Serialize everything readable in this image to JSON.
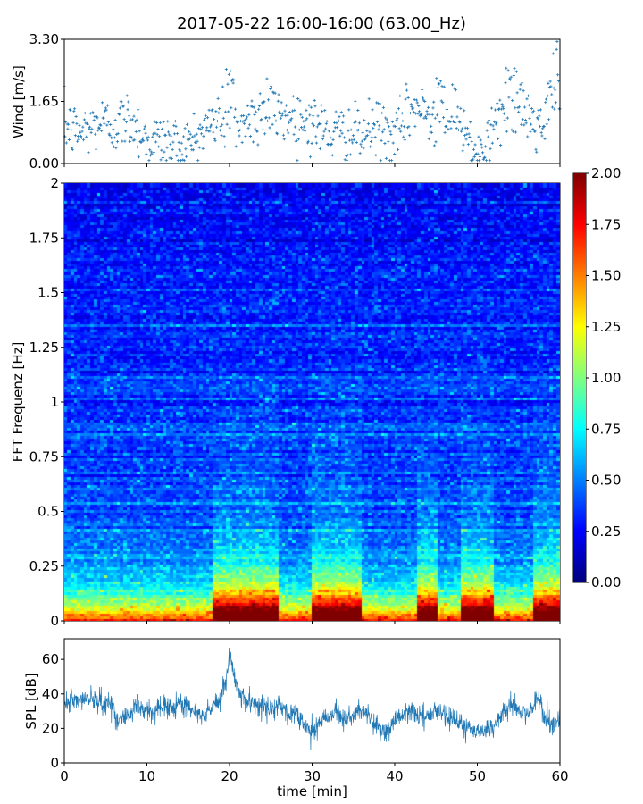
{
  "figure": {
    "title": "2017-05-22 16:00-16:00 (63.00_Hz)",
    "xlabel": "time [min]"
  },
  "chart_data": [
    {
      "type": "scatter",
      "name": "wind",
      "ylabel": "Wind [m/s]",
      "xlim": [
        0,
        60
      ],
      "ylim": [
        0,
        3.3
      ],
      "yticks": [
        "0.00",
        "1.65",
        "3.30"
      ],
      "yticks_values": [
        0,
        1.65,
        3.3
      ],
      "marker_color": "#1f77b4",
      "marker": "+",
      "trend": [
        [
          0,
          1.0
        ],
        [
          2,
          0.8
        ],
        [
          4,
          1.1
        ],
        [
          6,
          1.0
        ],
        [
          8,
          1.2
        ],
        [
          10,
          0.6
        ],
        [
          12,
          0.6
        ],
        [
          14,
          0.5
        ],
        [
          15,
          0.5
        ],
        [
          17,
          0.9
        ],
        [
          18,
          1.1
        ],
        [
          19,
          1.2
        ],
        [
          20,
          1.0
        ],
        [
          22,
          1.1
        ],
        [
          24,
          1.4
        ],
        [
          26,
          1.3
        ],
        [
          28,
          1.2
        ],
        [
          30,
          1.1
        ],
        [
          32,
          0.8
        ],
        [
          34,
          0.8
        ],
        [
          36,
          0.7
        ],
        [
          38,
          1.0
        ],
        [
          40,
          0.6
        ],
        [
          42,
          1.5
        ],
        [
          44,
          1.3
        ],
        [
          46,
          1.2
        ],
        [
          48,
          1.0
        ],
        [
          50,
          0.4
        ],
        [
          51,
          0.5
        ],
        [
          53,
          1.2
        ],
        [
          55,
          1.6
        ],
        [
          57,
          1.0
        ],
        [
          58,
          0.9
        ],
        [
          59,
          1.8
        ],
        [
          60,
          1.6
        ]
      ],
      "peaks": [
        [
          20,
          2.6
        ],
        [
          25,
          2.3
        ],
        [
          45.5,
          2.4
        ],
        [
          54,
          2.6
        ],
        [
          59.5,
          3.3
        ]
      ]
    },
    {
      "type": "heatmap",
      "name": "spectrogram",
      "ylabel": "FFT Frequenz [Hz]",
      "xlim": [
        0,
        60
      ],
      "ylim": [
        0,
        2
      ],
      "yticks": [
        "0",
        "0.25",
        "0.5",
        "0.75",
        "1",
        "1.25",
        "1.5",
        "1.75",
        "2"
      ],
      "yticks_values": [
        0,
        0.25,
        0.5,
        0.75,
        1,
        1.25,
        1.5,
        1.75,
        2
      ],
      "colormap": "jet",
      "value_range": [
        0,
        2
      ],
      "n_time_bins": 150,
      "n_freq_bins": 160,
      "high_energy_intervals_min": [
        [
          18,
          26
        ],
        [
          30,
          36
        ],
        [
          43,
          45
        ],
        [
          48,
          52
        ],
        [
          57,
          60
        ]
      ],
      "colorbar": {
        "ticks": [
          "0.00",
          "0.25",
          "0.50",
          "0.75",
          "1.00",
          "1.25",
          "1.50",
          "1.75",
          "2.00"
        ],
        "ticks_values": [
          0,
          0.25,
          0.5,
          0.75,
          1,
          1.25,
          1.5,
          1.75,
          2
        ]
      }
    },
    {
      "type": "line",
      "name": "spl",
      "ylabel": "SPL [dB]",
      "xlabel": "time [min]",
      "xlim": [
        0,
        60
      ],
      "ylim": [
        0,
        72
      ],
      "xticks": [
        "0",
        "10",
        "20",
        "30",
        "40",
        "50",
        "60"
      ],
      "xticks_values": [
        0,
        10,
        20,
        30,
        40,
        50,
        60
      ],
      "yticks": [
        "0",
        "20",
        "40",
        "60"
      ],
      "yticks_values": [
        0,
        20,
        40,
        60
      ],
      "line_color": "#1f77b4",
      "trend": [
        [
          0,
          36
        ],
        [
          3,
          37
        ],
        [
          6,
          33
        ],
        [
          6.2,
          24
        ],
        [
          8,
          27
        ],
        [
          9,
          34
        ],
        [
          10,
          30
        ],
        [
          12,
          32
        ],
        [
          14,
          34
        ],
        [
          16,
          30
        ],
        [
          17,
          28
        ],
        [
          18,
          32
        ],
        [
          19,
          38
        ],
        [
          19.8,
          52
        ],
        [
          20,
          60
        ],
        [
          20.5,
          50
        ],
        [
          21,
          42
        ],
        [
          22,
          36
        ],
        [
          24,
          32
        ],
        [
          25,
          30
        ],
        [
          26,
          35
        ],
        [
          27,
          28
        ],
        [
          28,
          30
        ],
        [
          29,
          22
        ],
        [
          30,
          18
        ],
        [
          31,
          24
        ],
        [
          32,
          28
        ],
        [
          33,
          30
        ],
        [
          34,
          25
        ],
        [
          36,
          30
        ],
        [
          37,
          26
        ],
        [
          38,
          20
        ],
        [
          39,
          18
        ],
        [
          40,
          25
        ],
        [
          41,
          28
        ],
        [
          42,
          30
        ],
        [
          43,
          27
        ],
        [
          44,
          28
        ],
        [
          45,
          30
        ],
        [
          46,
          28
        ],
        [
          47,
          25
        ],
        [
          48,
          22
        ],
        [
          49,
          20
        ],
        [
          50,
          18
        ],
        [
          51,
          20
        ],
        [
          52,
          20
        ],
        [
          53,
          28
        ],
        [
          54,
          35
        ],
        [
          55,
          30
        ],
        [
          56,
          28
        ],
        [
          57,
          35
        ],
        [
          57.5,
          40
        ],
        [
          58,
          28
        ],
        [
          59,
          22
        ],
        [
          60,
          25
        ]
      ]
    }
  ]
}
